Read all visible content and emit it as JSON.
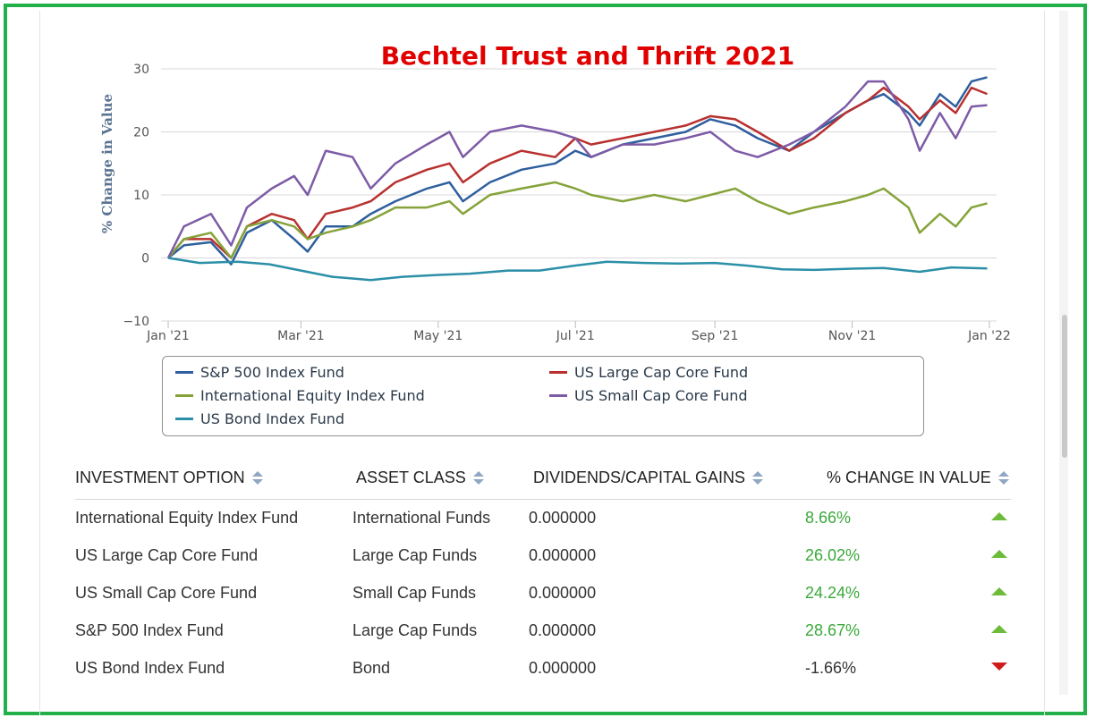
{
  "chart_data": {
    "type": "line",
    "title": "Bechtel Trust and Thrift 2021",
    "ylabel": "% Change in Value",
    "xlabel": "",
    "ylim": [
      -10,
      30
    ],
    "xlim": [
      "2021-01-01",
      "2022-01-01"
    ],
    "yticks": [
      "30",
      "20",
      "10",
      "0",
      "−10"
    ],
    "xticks": [
      {
        "label": "Jan '21",
        "date": "2021-01-01"
      },
      {
        "label": "Mar '21",
        "date": "2021-03-01"
      },
      {
        "label": "May '21",
        "date": "2021-05-01"
      },
      {
        "label": "Jul '21",
        "date": "2021-07-01"
      },
      {
        "label": "Sep '21",
        "date": "2021-09-01"
      },
      {
        "label": "Nov '21",
        "date": "2021-11-01"
      },
      {
        "label": "Jan '22",
        "date": "2022-01-01"
      }
    ],
    "grid": true,
    "legend_position": "bottom",
    "series": [
      {
        "name": "S&P 500 Index Fund",
        "color": "#2e5f9e",
        "points": [
          [
            "2021-01-01",
            0
          ],
          [
            "2021-01-08",
            2
          ],
          [
            "2021-01-20",
            2.5
          ],
          [
            "2021-01-29",
            -1
          ],
          [
            "2021-02-05",
            4
          ],
          [
            "2021-02-16",
            6
          ],
          [
            "2021-02-26",
            3
          ],
          [
            "2021-03-04",
            1
          ],
          [
            "2021-03-12",
            5
          ],
          [
            "2021-03-24",
            5
          ],
          [
            "2021-04-01",
            7
          ],
          [
            "2021-04-12",
            9
          ],
          [
            "2021-04-26",
            11
          ],
          [
            "2021-05-06",
            12
          ],
          [
            "2021-05-12",
            9
          ],
          [
            "2021-05-24",
            12
          ],
          [
            "2021-06-07",
            14
          ],
          [
            "2021-06-22",
            15
          ],
          [
            "2021-07-01",
            17
          ],
          [
            "2021-07-08",
            16
          ],
          [
            "2021-07-22",
            18
          ],
          [
            "2021-08-05",
            19
          ],
          [
            "2021-08-19",
            20
          ],
          [
            "2021-08-30",
            22
          ],
          [
            "2021-09-10",
            21
          ],
          [
            "2021-09-20",
            19
          ],
          [
            "2021-10-04",
            17
          ],
          [
            "2021-10-15",
            20
          ],
          [
            "2021-10-29",
            23
          ],
          [
            "2021-11-08",
            25
          ],
          [
            "2021-11-15",
            26
          ],
          [
            "2021-11-26",
            23
          ],
          [
            "2021-12-01",
            21
          ],
          [
            "2021-12-10",
            26
          ],
          [
            "2021-12-17",
            24
          ],
          [
            "2021-12-24",
            28
          ],
          [
            "2021-12-31",
            28.67
          ]
        ]
      },
      {
        "name": "US Large Cap Core Fund",
        "color": "#b8312f",
        "points": [
          [
            "2021-01-01",
            0
          ],
          [
            "2021-01-08",
            3
          ],
          [
            "2021-01-20",
            3
          ],
          [
            "2021-01-29",
            0
          ],
          [
            "2021-02-05",
            5
          ],
          [
            "2021-02-16",
            7
          ],
          [
            "2021-02-26",
            6
          ],
          [
            "2021-03-04",
            3
          ],
          [
            "2021-03-12",
            7
          ],
          [
            "2021-03-24",
            8
          ],
          [
            "2021-04-01",
            9
          ],
          [
            "2021-04-12",
            12
          ],
          [
            "2021-04-26",
            14
          ],
          [
            "2021-05-06",
            15
          ],
          [
            "2021-05-12",
            12
          ],
          [
            "2021-05-24",
            15
          ],
          [
            "2021-06-07",
            17
          ],
          [
            "2021-06-22",
            16
          ],
          [
            "2021-07-01",
            19
          ],
          [
            "2021-07-08",
            18
          ],
          [
            "2021-07-22",
            19
          ],
          [
            "2021-08-05",
            20
          ],
          [
            "2021-08-19",
            21
          ],
          [
            "2021-08-30",
            22.5
          ],
          [
            "2021-09-10",
            22
          ],
          [
            "2021-09-20",
            20
          ],
          [
            "2021-10-04",
            17
          ],
          [
            "2021-10-15",
            19
          ],
          [
            "2021-10-29",
            23
          ],
          [
            "2021-11-08",
            25
          ],
          [
            "2021-11-15",
            27
          ],
          [
            "2021-11-26",
            24
          ],
          [
            "2021-12-01",
            22
          ],
          [
            "2021-12-10",
            25
          ],
          [
            "2021-12-17",
            23
          ],
          [
            "2021-12-24",
            27
          ],
          [
            "2021-12-31",
            26.02
          ]
        ]
      },
      {
        "name": "International Equity Index Fund",
        "color": "#86a33a",
        "points": [
          [
            "2021-01-01",
            0
          ],
          [
            "2021-01-08",
            3
          ],
          [
            "2021-01-20",
            4
          ],
          [
            "2021-01-29",
            0
          ],
          [
            "2021-02-05",
            5
          ],
          [
            "2021-02-16",
            6
          ],
          [
            "2021-02-26",
            5
          ],
          [
            "2021-03-04",
            3
          ],
          [
            "2021-03-12",
            4
          ],
          [
            "2021-03-24",
            5
          ],
          [
            "2021-04-01",
            6
          ],
          [
            "2021-04-12",
            8
          ],
          [
            "2021-04-26",
            8
          ],
          [
            "2021-05-06",
            9
          ],
          [
            "2021-05-12",
            7
          ],
          [
            "2021-05-24",
            10
          ],
          [
            "2021-06-07",
            11
          ],
          [
            "2021-06-22",
            12
          ],
          [
            "2021-07-01",
            11
          ],
          [
            "2021-07-08",
            10
          ],
          [
            "2021-07-22",
            9
          ],
          [
            "2021-08-05",
            10
          ],
          [
            "2021-08-19",
            9
          ],
          [
            "2021-08-30",
            10
          ],
          [
            "2021-09-10",
            11
          ],
          [
            "2021-09-20",
            9
          ],
          [
            "2021-10-04",
            7
          ],
          [
            "2021-10-15",
            8
          ],
          [
            "2021-10-29",
            9
          ],
          [
            "2021-11-08",
            10
          ],
          [
            "2021-11-15",
            11
          ],
          [
            "2021-11-26",
            8
          ],
          [
            "2021-12-01",
            4
          ],
          [
            "2021-12-10",
            7
          ],
          [
            "2021-12-17",
            5
          ],
          [
            "2021-12-24",
            8
          ],
          [
            "2021-12-31",
            8.66
          ]
        ]
      },
      {
        "name": "US Small Cap Core Fund",
        "color": "#7d5ba6",
        "points": [
          [
            "2021-01-01",
            0
          ],
          [
            "2021-01-08",
            5
          ],
          [
            "2021-01-20",
            7
          ],
          [
            "2021-01-29",
            2
          ],
          [
            "2021-02-05",
            8
          ],
          [
            "2021-02-16",
            11
          ],
          [
            "2021-02-26",
            13
          ],
          [
            "2021-03-04",
            10
          ],
          [
            "2021-03-12",
            17
          ],
          [
            "2021-03-24",
            16
          ],
          [
            "2021-04-01",
            11
          ],
          [
            "2021-04-12",
            15
          ],
          [
            "2021-04-26",
            18
          ],
          [
            "2021-05-06",
            20
          ],
          [
            "2021-05-12",
            16
          ],
          [
            "2021-05-24",
            20
          ],
          [
            "2021-06-07",
            21
          ],
          [
            "2021-06-22",
            20
          ],
          [
            "2021-07-01",
            19
          ],
          [
            "2021-07-08",
            16
          ],
          [
            "2021-07-22",
            18
          ],
          [
            "2021-08-05",
            18
          ],
          [
            "2021-08-19",
            19
          ],
          [
            "2021-08-30",
            20
          ],
          [
            "2021-09-10",
            17
          ],
          [
            "2021-09-20",
            16
          ],
          [
            "2021-10-04",
            18
          ],
          [
            "2021-10-15",
            20
          ],
          [
            "2021-10-29",
            24
          ],
          [
            "2021-11-08",
            28
          ],
          [
            "2021-11-15",
            28
          ],
          [
            "2021-11-26",
            22
          ],
          [
            "2021-12-01",
            17
          ],
          [
            "2021-12-10",
            23
          ],
          [
            "2021-12-17",
            19
          ],
          [
            "2021-12-24",
            24
          ],
          [
            "2021-12-31",
            24.24
          ]
        ]
      },
      {
        "name": "US Bond Index Fund",
        "color": "#2b8fa8",
        "points": [
          [
            "2021-01-01",
            0
          ],
          [
            "2021-01-15",
            -0.8
          ],
          [
            "2021-02-01",
            -0.6
          ],
          [
            "2021-02-15",
            -1
          ],
          [
            "2021-03-01",
            -2
          ],
          [
            "2021-03-15",
            -3
          ],
          [
            "2021-04-01",
            -3.5
          ],
          [
            "2021-04-15",
            -3
          ],
          [
            "2021-05-01",
            -2.7
          ],
          [
            "2021-05-15",
            -2.5
          ],
          [
            "2021-06-01",
            -2
          ],
          [
            "2021-06-15",
            -2
          ],
          [
            "2021-07-01",
            -1.2
          ],
          [
            "2021-07-15",
            -0.6
          ],
          [
            "2021-08-01",
            -0.8
          ],
          [
            "2021-08-15",
            -0.9
          ],
          [
            "2021-09-01",
            -0.8
          ],
          [
            "2021-09-15",
            -1.2
          ],
          [
            "2021-10-01",
            -1.8
          ],
          [
            "2021-10-15",
            -1.9
          ],
          [
            "2021-11-01",
            -1.7
          ],
          [
            "2021-11-15",
            -1.6
          ],
          [
            "2021-12-01",
            -2.2
          ],
          [
            "2021-12-15",
            -1.5
          ],
          [
            "2021-12-31",
            -1.66
          ]
        ]
      }
    ]
  },
  "table": {
    "headers": [
      "INVESTMENT OPTION",
      "ASSET CLASS",
      "DIVIDENDS/CAPITAL GAINS",
      "% CHANGE IN VALUE"
    ],
    "rows": [
      {
        "option": "International Equity Index Fund",
        "asset_class": "International Funds",
        "dividends": "0.000000",
        "change": "8.66%",
        "direction": "up"
      },
      {
        "option": "US Large Cap Core Fund",
        "asset_class": "Large Cap Funds",
        "dividends": "0.000000",
        "change": "26.02%",
        "direction": "up"
      },
      {
        "option": "US Small Cap Core Fund",
        "asset_class": "Small Cap Funds",
        "dividends": "0.000000",
        "change": "24.24%",
        "direction": "up"
      },
      {
        "option": "S&P 500 Index Fund",
        "asset_class": "Large Cap Funds",
        "dividends": "0.000000",
        "change": "28.67%",
        "direction": "up"
      },
      {
        "option": "US Bond Index Fund",
        "asset_class": "Bond",
        "dividends": "0.000000",
        "change": "-1.66%",
        "direction": "down"
      }
    ]
  },
  "colors": {
    "frame": "#22b04b",
    "title": "#e00000",
    "positive": "#3aa93a",
    "up_arrow": "#6dbb3a",
    "down_arrow": "#d11a1a"
  }
}
